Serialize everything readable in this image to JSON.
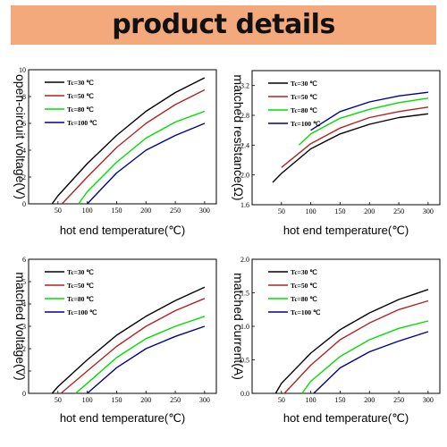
{
  "banner": {
    "title": "product details"
  },
  "colors": {
    "banner_bg": "#f4a97c",
    "Tc30": "#000000",
    "Tc50": "#b22222",
    "Tc80": "#00dd00",
    "Tc100": "#00008b"
  },
  "chart_data": [
    {
      "type": "line",
      "ylabel": "open-circuit voltage(V)",
      "xlabel": "hot end temperature(℃)",
      "xlim": [
        0,
        320
      ],
      "ylim": [
        0,
        10
      ],
      "xticks": [
        "50",
        "100",
        "150",
        "200",
        "250",
        "300"
      ],
      "yticks": [
        "0",
        "2",
        "4",
        "6",
        "8",
        "10"
      ],
      "grid": false,
      "legend_position": "top-left",
      "series": [
        {
          "name": "Tc=30 ℃",
          "color": "#000000",
          "x": [
            40,
            50,
            100,
            150,
            200,
            250,
            300
          ],
          "y": [
            0,
            0.6,
            3.0,
            5.1,
            6.9,
            8.3,
            9.4
          ]
        },
        {
          "name": "Tc=50 ℃",
          "color": "#b22222",
          "x": [
            57,
            100,
            150,
            200,
            250,
            300
          ],
          "y": [
            0,
            2.0,
            4.2,
            6.0,
            7.4,
            8.5
          ]
        },
        {
          "name": "Tc=80 ℃",
          "color": "#00dd00",
          "x": [
            85,
            100,
            150,
            200,
            250,
            300
          ],
          "y": [
            0,
            0.9,
            3.1,
            4.9,
            6.1,
            6.9
          ]
        },
        {
          "name": "Tc=100 ℃",
          "color": "#00008b",
          "x": [
            100,
            150,
            200,
            250,
            300
          ],
          "y": [
            0,
            2.3,
            4.0,
            5.1,
            6.0
          ]
        }
      ]
    },
    {
      "type": "line",
      "ylabel": "matched resistance(Ω)",
      "xlabel": "hot end temperature(℃)",
      "xlim": [
        0,
        320
      ],
      "ylim": [
        1.6,
        3.4
      ],
      "xticks": [
        "50",
        "100",
        "150",
        "200",
        "250",
        "300"
      ],
      "yticks": [
        "1.6",
        "2.0",
        "2.4",
        "2.8",
        "3.2"
      ],
      "grid": false,
      "legend_position": "top-left",
      "series": [
        {
          "name": "Tc=30 ℃",
          "color": "#000000",
          "x": [
            35,
            50,
            100,
            150,
            200,
            250,
            300
          ],
          "y": [
            1.9,
            2.02,
            2.35,
            2.55,
            2.68,
            2.77,
            2.82
          ]
        },
        {
          "name": "Tc=50 ℃",
          "color": "#b22222",
          "x": [
            50,
            100,
            150,
            200,
            250,
            300
          ],
          "y": [
            2.1,
            2.42,
            2.63,
            2.77,
            2.85,
            2.91
          ]
        },
        {
          "name": "Tc=80 ℃",
          "color": "#00dd00",
          "x": [
            80,
            100,
            150,
            200,
            250,
            300
          ],
          "y": [
            2.4,
            2.55,
            2.76,
            2.88,
            2.97,
            3.03
          ]
        },
        {
          "name": "Tc=100 ℃",
          "color": "#00008b",
          "x": [
            100,
            150,
            200,
            250,
            300
          ],
          "y": [
            2.6,
            2.85,
            2.98,
            3.06,
            3.11
          ]
        }
      ]
    },
    {
      "type": "line",
      "ylabel": "matched voltage(V)",
      "xlabel": "hot end temperature(℃)",
      "xlim": [
        0,
        320
      ],
      "ylim": [
        0,
        6
      ],
      "xticks": [
        "50",
        "100",
        "150",
        "200",
        "250",
        "300"
      ],
      "yticks": [
        "0",
        "1",
        "2",
        "3",
        "4",
        "5",
        "6"
      ],
      "grid": false,
      "legend_position": "top-left",
      "series": [
        {
          "name": "Tc=30 ℃",
          "color": "#000000",
          "x": [
            40,
            50,
            100,
            150,
            200,
            250,
            300
          ],
          "y": [
            0,
            0.3,
            1.5,
            2.6,
            3.45,
            4.15,
            4.75
          ]
        },
        {
          "name": "Tc=50 ℃",
          "color": "#b22222",
          "x": [
            55,
            100,
            150,
            200,
            250,
            300
          ],
          "y": [
            0,
            1.0,
            2.1,
            3.0,
            3.7,
            4.25
          ]
        },
        {
          "name": "Tc=80 ℃",
          "color": "#00dd00",
          "x": [
            80,
            100,
            150,
            200,
            250,
            300
          ],
          "y": [
            0,
            0.45,
            1.6,
            2.45,
            3.0,
            3.45
          ]
        },
        {
          "name": "Tc=100 ℃",
          "color": "#00008b",
          "x": [
            100,
            150,
            200,
            250,
            300
          ],
          "y": [
            0,
            1.15,
            2.0,
            2.55,
            3.0
          ]
        }
      ]
    },
    {
      "type": "line",
      "ylabel": "matched current(A)",
      "xlabel": "hot end temperature(℃)",
      "xlim": [
        0,
        320
      ],
      "ylim": [
        0,
        2.0
      ],
      "xticks": [
        "50",
        "100",
        "150",
        "200",
        "250",
        "300"
      ],
      "yticks": [
        "0.0",
        "0.5",
        "1.0",
        "1.5",
        "2.0"
      ],
      "grid": false,
      "legend_position": "top-left",
      "series": [
        {
          "name": "Tc=30 ℃",
          "color": "#000000",
          "x": [
            40,
            50,
            100,
            150,
            200,
            250,
            300
          ],
          "y": [
            0,
            0.15,
            0.6,
            0.95,
            1.2,
            1.4,
            1.55
          ]
        },
        {
          "name": "Tc=50 ℃",
          "color": "#b22222",
          "x": [
            55,
            100,
            150,
            200,
            250,
            300
          ],
          "y": [
            0,
            0.42,
            0.8,
            1.05,
            1.25,
            1.38
          ]
        },
        {
          "name": "Tc=80 ℃",
          "color": "#00dd00",
          "x": [
            85,
            100,
            150,
            200,
            250,
            300
          ],
          "y": [
            0,
            0.18,
            0.55,
            0.8,
            0.97,
            1.08
          ]
        },
        {
          "name": "Tc=100 ℃",
          "color": "#00008b",
          "x": [
            105,
            150,
            200,
            250,
            300
          ],
          "y": [
            0,
            0.38,
            0.62,
            0.78,
            0.92
          ]
        }
      ]
    }
  ]
}
